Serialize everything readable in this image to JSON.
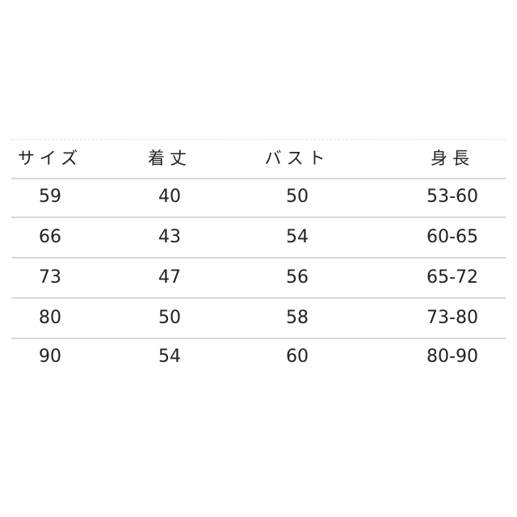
{
  "table": {
    "headers": [
      "サイズ",
      "着丈",
      "バスト",
      "身長"
    ],
    "rows": [
      [
        "59",
        "40",
        "50",
        "53-60"
      ],
      [
        "66",
        "43",
        "54",
        "60-65"
      ],
      [
        "73",
        "47",
        "56",
        "65-72"
      ],
      [
        "80",
        "50",
        "58",
        "73-80"
      ],
      [
        "90",
        "54",
        "60",
        "80-90"
      ]
    ]
  }
}
